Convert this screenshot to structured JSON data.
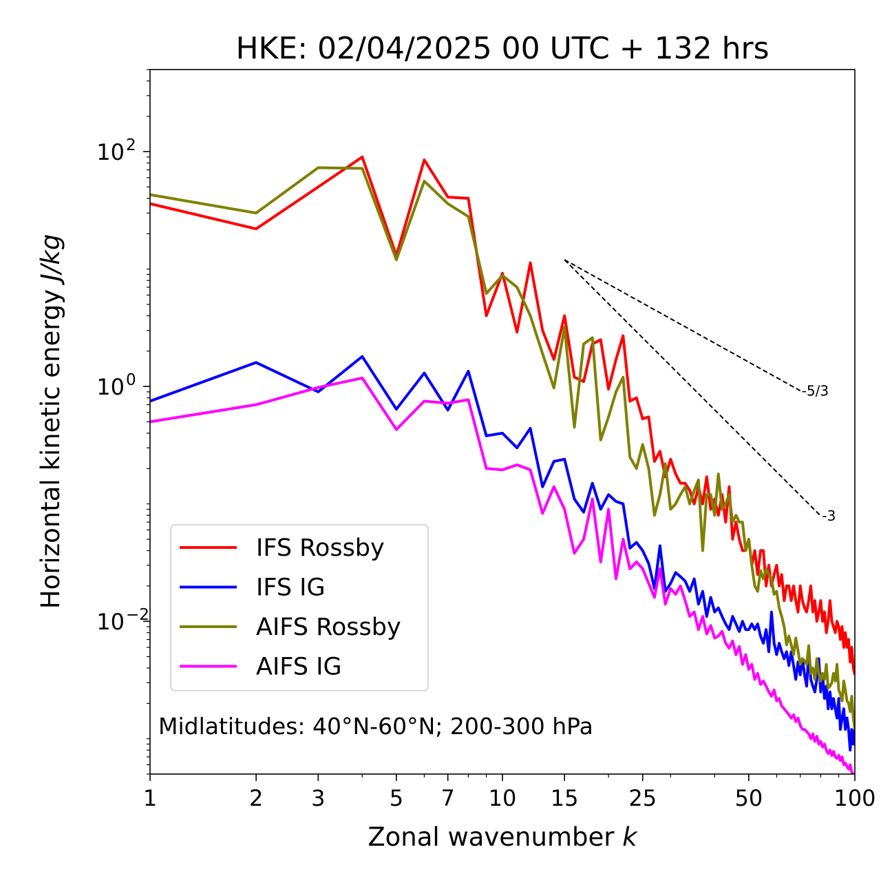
{
  "chart_data": {
    "type": "line",
    "title": "HKE: 02/04/2025 00 UTC + 132 hrs",
    "xlabel": "Zonal wavenumber k",
    "ylabel": "Horizontal kinetic energy J/kg",
    "xscale": "log",
    "yscale": "log",
    "xlim": [
      1,
      100
    ],
    "ylim": [
      0.0005,
      500
    ],
    "xticks": [
      1,
      2,
      3,
      5,
      7,
      10,
      15,
      25,
      50,
      100
    ],
    "xtick_labels": [
      "1",
      "2",
      "3",
      "5",
      "7",
      "10",
      "15",
      "25",
      "50",
      "100"
    ],
    "yticks": [
      0.01,
      1,
      100
    ],
    "ytick_labels": [
      "10",
      "10",
      "10"
    ],
    "ytick_exponents": [
      "−2",
      "0",
      "2"
    ],
    "grid": false,
    "legend_position": "lower-left",
    "annotation": "Midlatitudes: 40°N-60°N; 200-300 hPa",
    "series": [
      {
        "name": "IFS Rossby",
        "color": "#ff0000",
        "x": [
          1,
          2,
          3,
          4,
          5,
          6,
          7,
          8,
          9,
          10,
          11,
          12,
          13,
          14,
          15,
          16,
          17,
          18,
          19,
          20,
          21,
          22,
          23,
          24,
          25,
          26,
          27,
          28,
          29,
          30,
          31,
          32,
          33,
          34,
          35,
          36,
          37,
          38,
          39,
          40,
          41,
          42,
          43,
          44,
          45,
          46,
          47,
          48,
          49,
          50,
          51,
          52,
          53,
          54,
          55,
          56,
          57,
          58,
          59,
          60,
          61,
          62,
          63,
          64,
          65,
          66,
          67,
          68,
          69,
          70,
          71,
          72,
          73,
          74,
          75,
          76,
          77,
          78,
          79,
          80,
          81,
          82,
          83,
          84,
          85,
          86,
          87,
          88,
          89,
          90,
          91,
          92,
          93,
          94,
          95,
          96,
          97,
          98,
          99,
          100
        ],
        "y": [
          36,
          22,
          50,
          90,
          13,
          85,
          41,
          40,
          4.0,
          9.2,
          2.9,
          11.3,
          3.0,
          1.7,
          4.0,
          1.2,
          1.1,
          2.3,
          2.5,
          0.95,
          1.7,
          2.7,
          0.75,
          0.8,
          0.53,
          0.55,
          0.23,
          0.28,
          0.17,
          0.24,
          0.18,
          0.15,
          0.15,
          0.13,
          0.1,
          0.14,
          0.1,
          0.17,
          0.09,
          0.11,
          0.08,
          0.12,
          0.07,
          0.14,
          0.05,
          0.07,
          0.05,
          0.04,
          0.04,
          0.05,
          0.03,
          0.04,
          0.025,
          0.04,
          0.04,
          0.02,
          0.03,
          0.02,
          0.025,
          0.03,
          0.02,
          0.025,
          0.015,
          0.02,
          0.02,
          0.015,
          0.02,
          0.015,
          0.012,
          0.02,
          0.015,
          0.013,
          0.012,
          0.015,
          0.02,
          0.012,
          0.015,
          0.01,
          0.012,
          0.015,
          0.01,
          0.012,
          0.008,
          0.01,
          0.015,
          0.01,
          0.009,
          0.008,
          0.01,
          0.009,
          0.007,
          0.009,
          0.006,
          0.008,
          0.006,
          0.007,
          0.0045,
          0.006,
          0.004,
          0.0035
        ]
      },
      {
        "name": "IFS IG",
        "color": "#0000ff",
        "x": [
          1,
          2,
          3,
          4,
          5,
          6,
          7,
          8,
          9,
          10,
          11,
          12,
          13,
          14,
          15,
          16,
          17,
          18,
          19,
          20,
          21,
          22,
          23,
          24,
          25,
          26,
          27,
          28,
          29,
          30,
          31,
          32,
          33,
          34,
          35,
          36,
          37,
          38,
          39,
          40,
          41,
          42,
          43,
          44,
          45,
          46,
          47,
          48,
          49,
          50,
          51,
          52,
          53,
          54,
          55,
          56,
          57,
          58,
          59,
          60,
          61,
          62,
          63,
          64,
          65,
          66,
          67,
          68,
          69,
          70,
          71,
          72,
          73,
          74,
          75,
          76,
          77,
          78,
          79,
          80,
          81,
          82,
          83,
          84,
          85,
          86,
          87,
          88,
          89,
          90,
          91,
          92,
          93,
          94,
          95,
          96,
          97,
          98,
          99,
          100
        ],
        "y": [
          0.75,
          1.6,
          0.9,
          1.8,
          0.64,
          1.3,
          0.63,
          1.35,
          0.38,
          0.4,
          0.3,
          0.44,
          0.14,
          0.23,
          0.24,
          0.11,
          0.085,
          0.15,
          0.09,
          0.12,
          0.105,
          0.1,
          0.042,
          0.047,
          0.04,
          0.031,
          0.019,
          0.044,
          0.018,
          0.021,
          0.026,
          0.024,
          0.022,
          0.018,
          0.023,
          0.014,
          0.018,
          0.011,
          0.016,
          0.012,
          0.013,
          0.011,
          0.0095,
          0.0085,
          0.011,
          0.0095,
          0.0082,
          0.01,
          0.0085,
          0.0085,
          0.0095,
          0.0085,
          0.0095,
          0.0075,
          0.0065,
          0.0085,
          0.0055,
          0.012,
          0.0065,
          0.0052,
          0.0065,
          0.0055,
          0.0048,
          0.0055,
          0.0042,
          0.0055,
          0.0042,
          0.0032,
          0.0045,
          0.0035,
          0.0048,
          0.0035,
          0.0028,
          0.0055,
          0.0032,
          0.0028,
          0.0025,
          0.0032,
          0.0048,
          0.0025,
          0.0035,
          0.0022,
          0.0028,
          0.0018,
          0.0025,
          0.0018,
          0.0022,
          0.0018,
          0.0015,
          0.0022,
          0.0012,
          0.0015,
          0.0018,
          0.0012,
          0.0015,
          0.0012,
          0.0008,
          0.0012,
          0.0009,
          0.0012
        ]
      },
      {
        "name": "AIFS Rossby",
        "color": "#808000",
        "x": [
          1,
          2,
          3,
          4,
          5,
          6,
          7,
          8,
          9,
          10,
          11,
          12,
          13,
          14,
          15,
          16,
          17,
          18,
          19,
          20,
          21,
          22,
          23,
          24,
          25,
          26,
          27,
          28,
          29,
          30,
          31,
          32,
          33,
          34,
          35,
          36,
          37,
          38,
          39,
          40,
          41,
          42,
          43,
          44,
          45,
          46,
          47,
          48,
          49,
          50,
          51,
          52,
          53,
          54,
          55,
          56,
          57,
          58,
          59,
          60,
          61,
          62,
          63,
          64,
          65,
          66,
          67,
          68,
          69,
          70,
          71,
          72,
          73,
          74,
          75,
          76,
          77,
          78,
          79,
          80,
          81,
          82,
          83,
          84,
          85,
          86,
          87,
          88,
          89,
          90,
          91,
          92,
          93,
          94,
          95,
          96,
          97,
          98,
          99,
          100
        ],
        "y": [
          43,
          30,
          73,
          72,
          12,
          56,
          36,
          28,
          6.2,
          8.8,
          7.0,
          4.0,
          1.9,
          0.97,
          3.2,
          0.45,
          2.3,
          2.6,
          0.35,
          0.55,
          0.9,
          1.2,
          0.25,
          0.2,
          0.32,
          0.2,
          0.08,
          0.12,
          0.22,
          0.09,
          0.1,
          0.12,
          0.14,
          0.1,
          0.13,
          0.16,
          0.04,
          0.12,
          0.12,
          0.08,
          0.18,
          0.09,
          0.1,
          0.12,
          0.07,
          0.08,
          0.07,
          0.07,
          0.04,
          0.05,
          0.03,
          0.02,
          0.018,
          0.027,
          0.023,
          0.028,
          0.025,
          0.023,
          0.017,
          0.018,
          0.013,
          0.011,
          0.009,
          0.0063,
          0.0075,
          0.0063,
          0.0052,
          0.0072,
          0.0056,
          0.0043,
          0.0048,
          0.0046,
          0.0043,
          0.0062,
          0.0036,
          0.004,
          0.0032,
          0.0048,
          0.0036,
          0.0031,
          0.0036,
          0.0032,
          0.0043,
          0.0027,
          0.0028,
          0.003,
          0.0036,
          0.0031,
          0.0043,
          0.0026,
          0.0024,
          0.0021,
          0.0031,
          0.0026,
          0.0021,
          0.002,
          0.0017,
          0.0023,
          0.0015,
          0.0012
        ]
      },
      {
        "name": "AIFS IG",
        "color": "#ff00ff",
        "x": [
          1,
          2,
          3,
          4,
          5,
          6,
          7,
          8,
          9,
          10,
          11,
          12,
          13,
          14,
          15,
          16,
          17,
          18,
          19,
          20,
          21,
          22,
          23,
          24,
          25,
          26,
          27,
          28,
          29,
          30,
          31,
          32,
          33,
          34,
          35,
          36,
          37,
          38,
          39,
          40,
          41,
          42,
          43,
          44,
          45,
          46,
          47,
          48,
          49,
          50,
          51,
          52,
          53,
          54,
          55,
          56,
          57,
          58,
          59,
          60,
          61,
          62,
          63,
          64,
          65,
          66,
          67,
          68,
          69,
          70,
          71,
          72,
          73,
          74,
          75,
          76,
          77,
          78,
          79,
          80,
          81,
          82,
          83,
          84,
          85,
          86,
          87,
          88,
          89,
          90,
          91,
          92,
          93,
          94,
          95,
          96,
          97,
          98,
          99,
          100
        ],
        "y": [
          0.5,
          0.7,
          0.98,
          1.18,
          0.43,
          0.75,
          0.72,
          0.77,
          0.2,
          0.195,
          0.215,
          0.195,
          0.083,
          0.14,
          0.09,
          0.038,
          0.05,
          0.11,
          0.032,
          0.09,
          0.023,
          0.05,
          0.028,
          0.032,
          0.028,
          0.021,
          0.016,
          0.028,
          0.014,
          0.019,
          0.017,
          0.02,
          0.015,
          0.011,
          0.012,
          0.0085,
          0.011,
          0.0078,
          0.0092,
          0.0072,
          0.0075,
          0.0082,
          0.0065,
          0.0059,
          0.0068,
          0.0052,
          0.0061,
          0.0043,
          0.0052,
          0.0039,
          0.0043,
          0.0032,
          0.0036,
          0.0029,
          0.0031,
          0.0028,
          0.0025,
          0.0023,
          0.0026,
          0.0021,
          0.0022,
          0.0019,
          0.0018,
          0.0017,
          0.0016,
          0.0015,
          0.0016,
          0.0014,
          0.0015,
          0.0013,
          0.0012,
          0.0012,
          0.00115,
          0.0011,
          0.001,
          0.0011,
          0.00095,
          0.00105,
          0.0009,
          0.00095,
          0.00085,
          0.0009,
          0.0008,
          0.00075,
          0.0008,
          0.00072,
          0.00078,
          0.0007,
          0.00068,
          0.00072,
          0.00065,
          0.0007,
          0.0006,
          0.00062,
          0.00058,
          0.00055,
          0.0006,
          0.00052,
          0.0005,
          0.00048
        ]
      }
    ],
    "reference_lines": [
      {
        "label": "-5/3",
        "x": [
          15,
          70
        ],
        "y": [
          12,
          0.92
        ],
        "style": "dashed",
        "color": "#000000"
      },
      {
        "label": "-3",
        "x": [
          15,
          80
        ],
        "y": [
          12,
          0.079
        ],
        "style": "dashed",
        "color": "#000000"
      }
    ]
  }
}
